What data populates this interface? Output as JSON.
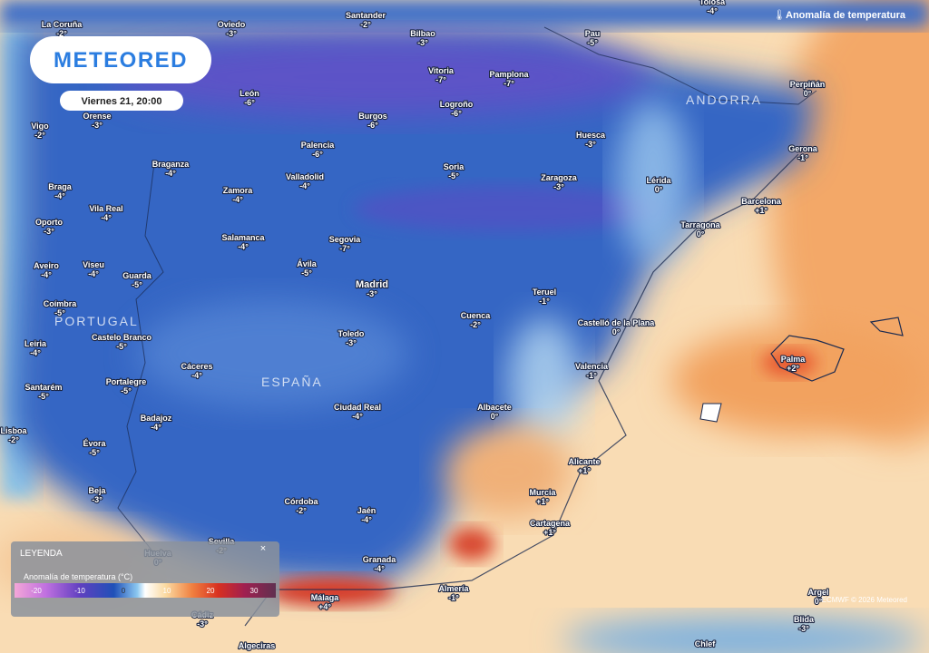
{
  "header": {
    "logo": "METEORED",
    "datetime": "Viernes 21, 20:00",
    "layer_title": "Anomalía de temperatura"
  },
  "countries": [
    "PORTUGAL",
    "ESPAÑA",
    "ANDORRA"
  ],
  "cities": [
    {
      "name": "La Coruña",
      "value": "-2°"
    },
    {
      "name": "Oviedo",
      "value": "-3°"
    },
    {
      "name": "Santander",
      "value": "-2°"
    },
    {
      "name": "Bilbao",
      "value": "-3°"
    },
    {
      "name": "Pau",
      "value": "-5°"
    },
    {
      "name": "Tolosa",
      "value": "-4°"
    },
    {
      "name": "Vitoria",
      "value": "-7°"
    },
    {
      "name": "Pamplona",
      "value": "-7°"
    },
    {
      "name": "Perpiñán",
      "value": "0°"
    },
    {
      "name": "León",
      "value": "-6°"
    },
    {
      "name": "Orense",
      "value": "-3°"
    },
    {
      "name": "Burgos",
      "value": "-6°"
    },
    {
      "name": "Logroño",
      "value": "-6°"
    },
    {
      "name": "Vigo",
      "value": "-2°"
    },
    {
      "name": "Huesca",
      "value": "-3°"
    },
    {
      "name": "Gerona",
      "value": "-1°"
    },
    {
      "name": "Palencia",
      "value": "-6°"
    },
    {
      "name": "Braganza",
      "value": "-4°"
    },
    {
      "name": "Soria",
      "value": "-5°"
    },
    {
      "name": "Braga",
      "value": "-4°"
    },
    {
      "name": "Valladolid",
      "value": "-4°"
    },
    {
      "name": "Zaragoza",
      "value": "-3°"
    },
    {
      "name": "Lérida",
      "value": "0°"
    },
    {
      "name": "Zamora",
      "value": "-4°"
    },
    {
      "name": "Barcelona",
      "value": "+1°"
    },
    {
      "name": "Vila Real",
      "value": "-4°"
    },
    {
      "name": "Oporto",
      "value": "-3°"
    },
    {
      "name": "Tarragona",
      "value": "0°"
    },
    {
      "name": "Salamanca",
      "value": "-4°"
    },
    {
      "name": "Segovia",
      "value": "-7°"
    },
    {
      "name": "Aveiro",
      "value": "-4°"
    },
    {
      "name": "Viseu",
      "value": "-4°"
    },
    {
      "name": "Guarda",
      "value": "-5°"
    },
    {
      "name": "Ávila",
      "value": "-5°"
    },
    {
      "name": "Madrid",
      "value": "-3°"
    },
    {
      "name": "Teruel",
      "value": "-1°"
    },
    {
      "name": "Coímbra",
      "value": "-5°"
    },
    {
      "name": "Cuenca",
      "value": "-2°"
    },
    {
      "name": "Castelló de la Plana",
      "value": "0°"
    },
    {
      "name": "Leiria",
      "value": "-4°"
    },
    {
      "name": "Castelo Branco",
      "value": "-5°"
    },
    {
      "name": "Toledo",
      "value": "-3°"
    },
    {
      "name": "Palma",
      "value": "+2°"
    },
    {
      "name": "Valencia",
      "value": "-1°"
    },
    {
      "name": "Cáceres",
      "value": "-4°"
    },
    {
      "name": "Portalegre",
      "value": "-5°"
    },
    {
      "name": "Santarém",
      "value": "-5°"
    },
    {
      "name": "Ciudad Real",
      "value": "-4°"
    },
    {
      "name": "Albacete",
      "value": "0°"
    },
    {
      "name": "Badajoz",
      "value": "-4°"
    },
    {
      "name": "Lisboa",
      "value": "-2°"
    },
    {
      "name": "Évora",
      "value": "-5°"
    },
    {
      "name": "Alicante",
      "value": "+1°"
    },
    {
      "name": "Murcia",
      "value": "+1°"
    },
    {
      "name": "Beja",
      "value": "-3°"
    },
    {
      "name": "Córdoba",
      "value": "-2°"
    },
    {
      "name": "Jaén",
      "value": "-4°"
    },
    {
      "name": "Cartagena",
      "value": "+1°"
    },
    {
      "name": "Sevilla",
      "value": "-2°"
    },
    {
      "name": "Huelva",
      "value": "0°"
    },
    {
      "name": "Granada",
      "value": "-4°"
    },
    {
      "name": "Almería",
      "value": "-1°"
    },
    {
      "name": "Málaga",
      "value": "+4°"
    },
    {
      "name": "Argel",
      "value": "0°"
    },
    {
      "name": "Cádiz",
      "value": "-3°"
    },
    {
      "name": "Blida",
      "value": "-3°"
    },
    {
      "name": "Algeciras",
      "value": null
    },
    {
      "name": "Chlef",
      "value": null
    }
  ],
  "legend": {
    "title": "LEYENDA",
    "close": "×",
    "subtitle": "Anomalía de temperatura (°C)",
    "scale": [
      -20,
      -10,
      0,
      10,
      20,
      30
    ]
  },
  "credit": "ECMWF © 2026 Meteored"
}
